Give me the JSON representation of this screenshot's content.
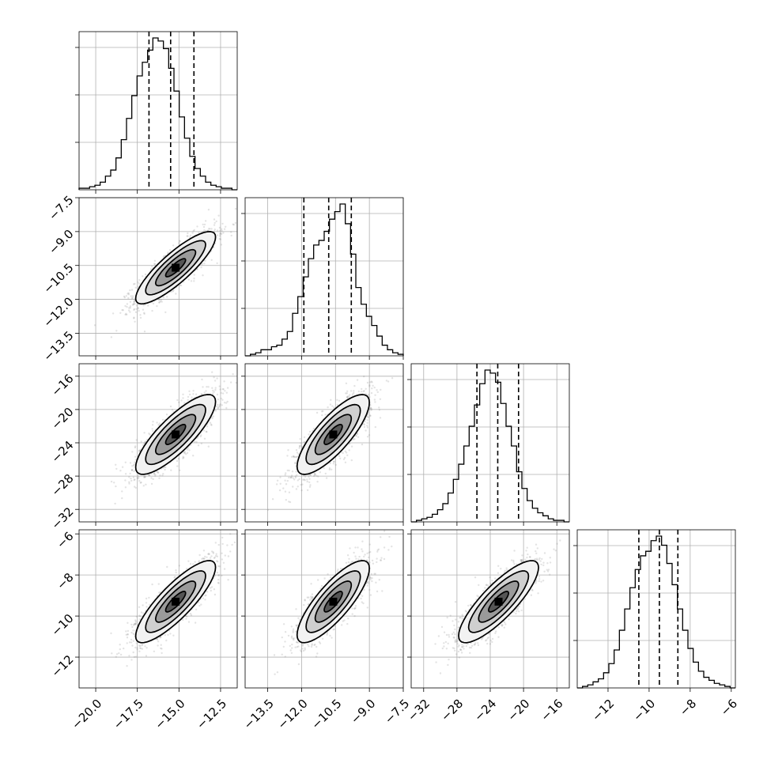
{
  "chart_data": {
    "type": "corner",
    "n_params": 4,
    "parameters": [
      {
        "name": "",
        "mean": -15.2,
        "std": 1.2,
        "lim": [
          -21.0,
          -11.5
        ],
        "ticks": [
          -20.0,
          -17.5,
          -15.0,
          -12.5
        ],
        "tick_labels": [
          "−20.0",
          "−17.5",
          "−15.0",
          "−12.5"
        ],
        "quantiles": [
          -16.8,
          -15.5,
          -14.1
        ]
      },
      {
        "name": "",
        "mean": -10.6,
        "std": 0.8,
        "lim": [
          -14.5,
          -7.5
        ],
        "ticks": [
          -13.5,
          -12.0,
          -10.5,
          -9.0,
          -7.5
        ],
        "tick_labels": [
          "−13.5",
          "−12.0",
          "−10.5",
          "−9.0",
          "−7.5"
        ],
        "quantiles": [
          -11.9,
          -10.8,
          -9.8
        ]
      },
      {
        "name": "",
        "mean": -23.0,
        "std": 2.4,
        "lim": [
          -33.5,
          -14.5
        ],
        "ticks": [
          -32,
          -28,
          -24,
          -20,
          -16
        ],
        "tick_labels": [
          "−32",
          "−28",
          "−24",
          "−20",
          "−16"
        ],
        "quantiles": [
          -25.6,
          -23.1,
          -20.6
        ]
      },
      {
        "name": "",
        "mean": -9.3,
        "std": 1.0,
        "lim": [
          -13.5,
          -5.8
        ],
        "ticks": [
          -12,
          -10,
          -8,
          -6
        ],
        "tick_labels": [
          "−12",
          "−10",
          "−8",
          "−6"
        ],
        "quantiles": [
          -10.5,
          -9.5,
          -8.6
        ]
      }
    ],
    "diagonal_histograms": [
      {
        "param": 0,
        "bins": 30,
        "counts": [
          0.01,
          0.01,
          0.02,
          0.03,
          0.05,
          0.09,
          0.13,
          0.21,
          0.33,
          0.47,
          0.62,
          0.75,
          0.84,
          0.92,
          1.0,
          0.98,
          0.93,
          0.8,
          0.65,
          0.48,
          0.34,
          0.22,
          0.14,
          0.09,
          0.05,
          0.03,
          0.02,
          0.01,
          0.01,
          0.0
        ]
      },
      {
        "param": 1,
        "bins": 30,
        "counts": [
          0.0,
          0.01,
          0.02,
          0.04,
          0.04,
          0.06,
          0.07,
          0.11,
          0.16,
          0.28,
          0.39,
          0.52,
          0.64,
          0.73,
          0.76,
          0.82,
          0.9,
          0.95,
          1.0,
          0.87,
          0.67,
          0.45,
          0.34,
          0.26,
          0.2,
          0.13,
          0.07,
          0.04,
          0.02,
          0.01
        ]
      },
      {
        "param": 2,
        "bins": 30,
        "counts": [
          0.0,
          0.01,
          0.02,
          0.03,
          0.05,
          0.08,
          0.12,
          0.19,
          0.28,
          0.38,
          0.5,
          0.63,
          0.77,
          0.91,
          1.0,
          0.98,
          0.92,
          0.78,
          0.63,
          0.5,
          0.33,
          0.22,
          0.14,
          0.09,
          0.06,
          0.04,
          0.02,
          0.01,
          0.01,
          0.0
        ]
      },
      {
        "param": 3,
        "bins": 30,
        "counts": [
          0.0,
          0.01,
          0.02,
          0.04,
          0.06,
          0.1,
          0.16,
          0.25,
          0.38,
          0.52,
          0.66,
          0.78,
          0.87,
          0.9,
          0.97,
          1.0,
          0.94,
          0.82,
          0.68,
          0.52,
          0.38,
          0.26,
          0.17,
          0.11,
          0.07,
          0.05,
          0.03,
          0.02,
          0.01,
          0.0
        ]
      }
    ],
    "correlations": [
      [
        1,
        0.85,
        0.82,
        0.84
      ],
      [
        0.85,
        1,
        0.8,
        0.81
      ],
      [
        0.82,
        0.8,
        1,
        0.83
      ],
      [
        0.84,
        0.81,
        0.83,
        1
      ]
    ],
    "contour_levels_sigma": [
      0.5,
      1.0,
      1.5,
      2.0
    ],
    "grid": true,
    "line_style_quantiles": "dashed"
  }
}
